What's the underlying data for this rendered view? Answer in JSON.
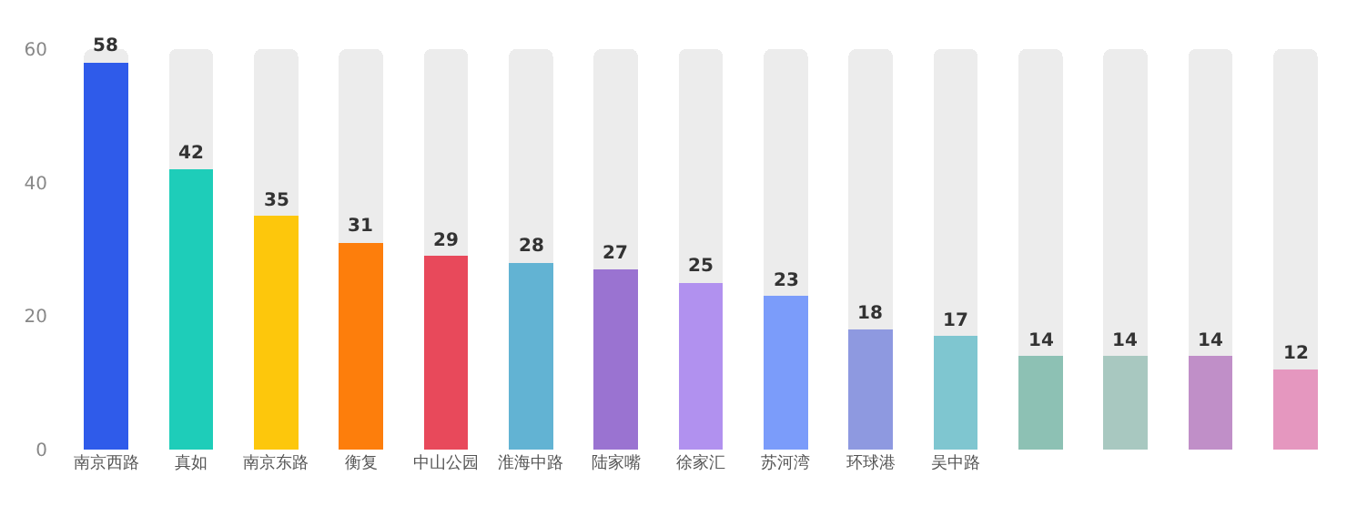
{
  "chart_data": {
    "type": "bar",
    "stacked": true,
    "categories": [
      "南京西路",
      "真如",
      "南京东路",
      "衡复",
      "中山公园",
      "淮海中路",
      "陆家嘴",
      "徐家汇",
      "苏河湾",
      "环球港",
      "吴中路",
      null,
      null,
      null,
      null
    ],
    "series": [
      {
        "colors": [
          "#2f5bea",
          "#1ecdb9",
          "#fdc70c",
          "#fd7e0c",
          "#e8495b",
          "#62b3d3",
          "#9a73d1",
          "#b191ef",
          "#7b9cfa",
          "#8e99e0",
          "#7fc6d0",
          "#8dc1b4",
          "#a8c8c0",
          "#c08fc8",
          "#e597bf"
        ],
        "values": [
          58,
          42,
          35,
          31,
          29,
          28,
          27,
          25,
          23,
          18,
          17,
          14,
          14,
          14,
          12
        ],
        "value_labels": [
          "58",
          "42",
          "35",
          "31",
          "29",
          "28",
          "27",
          "25",
          "23",
          "18",
          "17",
          "14",
          "14",
          "14",
          "12"
        ]
      },
      {
        "color": "#ececec",
        "values": [
          2,
          18,
          25,
          29,
          31,
          32,
          33,
          35,
          37,
          42,
          43,
          46,
          46,
          46,
          48
        ]
      }
    ],
    "ylim": [
      0,
      60
    ],
    "yticks": [
      0,
      20,
      40,
      60
    ],
    "grid": false
  }
}
